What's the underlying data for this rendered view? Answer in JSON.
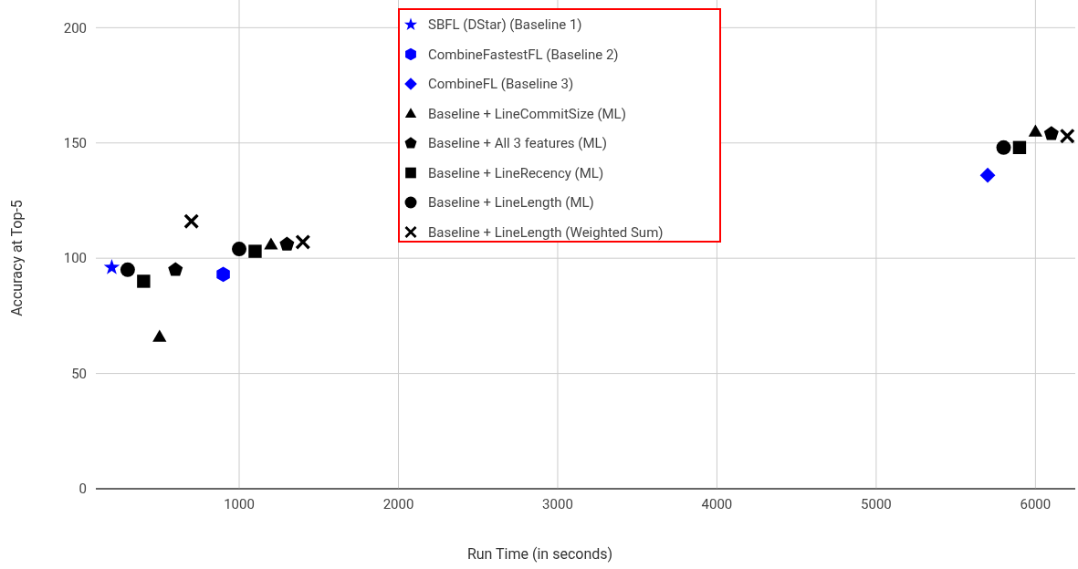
{
  "chart_data": {
    "type": "scatter",
    "xlabel": "Run Time (in seconds)",
    "ylabel": "Accuracy at Top-5",
    "xlim": [
      100,
      6250
    ],
    "ylim": [
      0,
      212
    ],
    "xticks": [
      1000,
      2000,
      3000,
      4000,
      5000,
      6000
    ],
    "yticks": [
      0,
      50,
      100,
      150,
      200
    ],
    "grid": true,
    "legend": "top",
    "series": [
      {
        "name": "SBFL (DStar) (Baseline 1)",
        "color": "#0000ff",
        "marker": "star",
        "x": [
          200
        ],
        "values": [
          96
        ]
      },
      {
        "name": "CombineFastestFL (Baseline 2)",
        "color": "#0000ff",
        "x": [
          900
        ],
        "values": [
          93
        ]
      },
      {
        "name": "CombineFL (Baseline 3)",
        "color": "#0000ff",
        "marker": "diamond",
        "x": [
          5700
        ],
        "values": [
          136
        ]
      },
      {
        "name": "Baseline + LineCommitSize (ML)",
        "color": "#000000",
        "marker": "triangle",
        "x": [
          500,
          1200,
          6000
        ],
        "values": [
          66,
          106,
          155
        ]
      },
      {
        "name": "Baseline + All 3 features (ML)",
        "color": "#000000",
        "x": [
          600,
          1300,
          6100
        ],
        "values": [
          95,
          106,
          154
        ]
      },
      {
        "name": "Baseline + LineRecency (ML)",
        "color": "#000000",
        "marker": "square",
        "x": [
          400,
          1100,
          5900
        ],
        "values": [
          90,
          103,
          148
        ]
      },
      {
        "name": "Baseline + LineLength (ML)",
        "color": "#000000",
        "marker": "circle",
        "x": [
          300,
          1000,
          5800
        ],
        "values": [
          95,
          104,
          148
        ]
      },
      {
        "name": "Baseline + LineLength (Weighted Sum)",
        "color": "#000000",
        "marker": "cross",
        "x": [
          700,
          1400,
          6200
        ],
        "values": [
          116,
          107,
          153
        ]
      }
    ]
  }
}
